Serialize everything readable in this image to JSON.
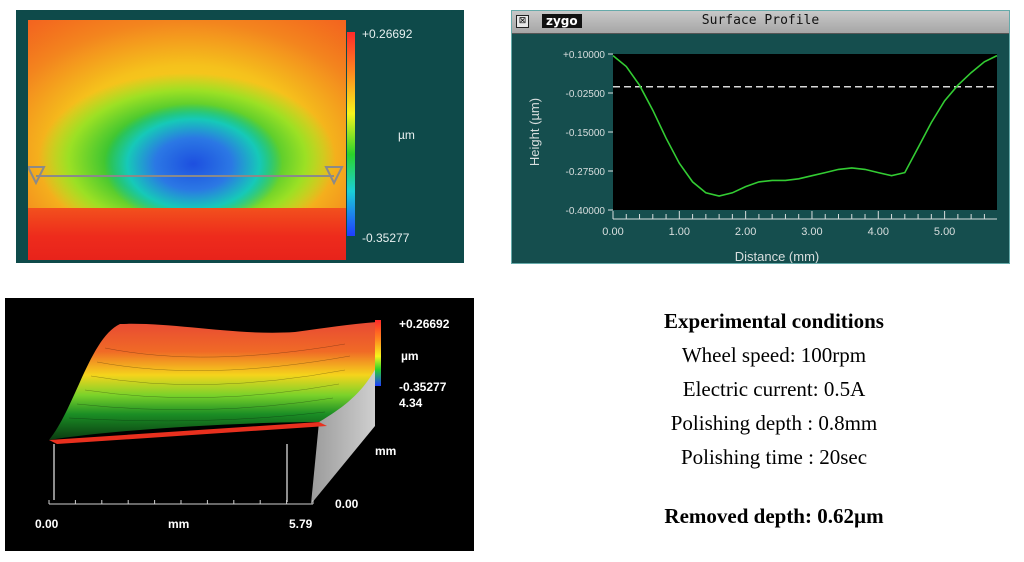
{
  "contour_map": {
    "scale_max": "+0.26692",
    "scale_unit": "µm",
    "scale_min": "-0.35277"
  },
  "surface_profile": {
    "window_title": "Surface Profile",
    "brand": "zygo",
    "close_glyph": "⊠",
    "ylabel": "Height (µm)",
    "xlabel": "Distance (mm)",
    "y_ticks": [
      "+0.10000",
      "-0.02500",
      "-0.15000",
      "-0.27500",
      "-0.40000"
    ],
    "x_ticks": [
      "0.00",
      "1.00",
      "2.00",
      "3.00",
      "4.00",
      "5.00"
    ],
    "reference_level": -0.005,
    "chart_data": {
      "type": "line",
      "xlabel": "Distance (mm)",
      "ylabel": "Height (µm)",
      "xlim": [
        0,
        5.79
      ],
      "ylim": [
        -0.4,
        0.1
      ],
      "x": [
        0.0,
        0.2,
        0.4,
        0.6,
        0.8,
        1.0,
        1.2,
        1.4,
        1.6,
        1.8,
        2.0,
        2.2,
        2.4,
        2.6,
        2.8,
        3.0,
        3.2,
        3.4,
        3.6,
        3.8,
        4.0,
        4.2,
        4.4,
        4.6,
        4.8,
        5.0,
        5.2,
        5.4,
        5.6,
        5.79
      ],
      "y": [
        0.095,
        0.06,
        0.0,
        -0.08,
        -0.17,
        -0.25,
        -0.31,
        -0.345,
        -0.355,
        -0.345,
        -0.325,
        -0.31,
        -0.305,
        -0.305,
        -0.3,
        -0.29,
        -0.28,
        -0.27,
        -0.265,
        -0.27,
        -0.28,
        -0.29,
        -0.28,
        -0.2,
        -0.12,
        -0.05,
        0.0,
        0.04,
        0.075,
        0.095
      ]
    }
  },
  "view3d": {
    "scale_max": "+0.26692",
    "scale_unit": "µm",
    "scale_min": "-0.35277",
    "y_max": "4.34",
    "y_unit": "mm",
    "y_min": "0.00",
    "x_min": "0.00",
    "x_unit": "mm",
    "x_max": "5.79"
  },
  "conditions": {
    "title": "Experimental conditions",
    "wheel_speed": "Wheel speed: 100rpm",
    "electric_current": "Electric current: 0.5A",
    "polishing_depth": "Polishing depth : 0.8mm",
    "polishing_time": "Polishing time : 20sec",
    "removed_depth": "Removed depth: 0.62µm"
  }
}
